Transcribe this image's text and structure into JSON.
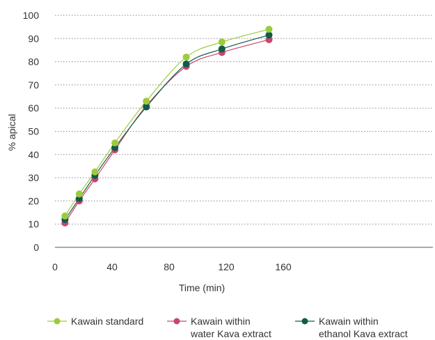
{
  "chart_data": {
    "type": "line",
    "title": "",
    "xlabel": "Time (min)",
    "ylabel": "% apical",
    "xlim": [
      0,
      200
    ],
    "ylim": [
      0,
      100
    ],
    "xticks": [
      0,
      40,
      80,
      120,
      160
    ],
    "yticks": [
      0,
      10,
      20,
      30,
      40,
      50,
      60,
      70,
      80,
      90,
      100
    ],
    "grid": "horizontal-dotted",
    "legend_position": "bottom",
    "series": [
      {
        "name": "Kawain standard",
        "color": "#9CCB3B",
        "x": [
          7,
          17,
          28,
          42,
          64,
          92,
          117,
          150
        ],
        "y": [
          13.5,
          23,
          32.5,
          45,
          63,
          82,
          88.5,
          94
        ]
      },
      {
        "name": "Kawain within\nwater Kava extract",
        "color": "#C9466A",
        "x": [
          7,
          17,
          28,
          42,
          64,
          92,
          117,
          150
        ],
        "y": [
          10.5,
          20,
          29.5,
          42,
          61,
          78,
          84,
          89.5
        ]
      },
      {
        "name": "Kawain within\nethanol Kava extract",
        "color": "#0E5C4A",
        "x": [
          7,
          17,
          28,
          42,
          64,
          92,
          117,
          150
        ],
        "y": [
          12,
          21,
          31,
          43,
          60.5,
          79,
          85.5,
          91.5
        ]
      }
    ]
  }
}
